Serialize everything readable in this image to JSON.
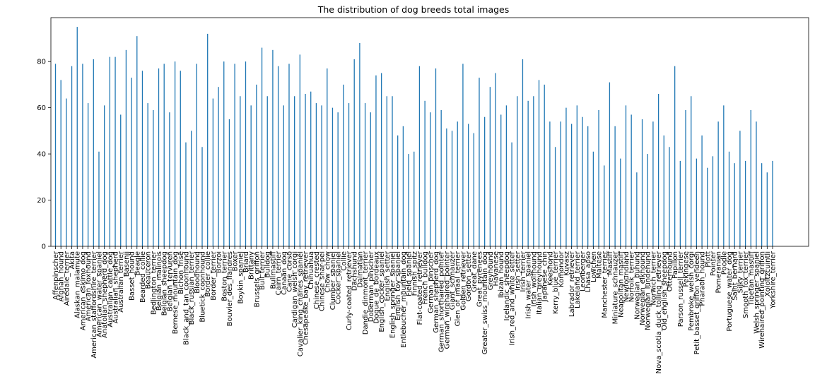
{
  "chart_data": {
    "type": "bar",
    "title": "The distribution of dog breeds total images",
    "xlabel": "",
    "ylabel": "",
    "ylim": [
      0,
      99
    ],
    "yticks": [
      0,
      20,
      40,
      60,
      80
    ],
    "grid": false,
    "color": "#1f77b4",
    "categories": [
      "Affenpinscher",
      "Afghan_hound",
      "Airedale_terrier",
      "Akita",
      "Alaskan_malamute",
      "American_eskimo_dog",
      "American_foxhound",
      "American_staffordshire_terrier",
      "American_water_spaniel",
      "Anatolian_shepherd_dog",
      "Australian_cattle_dog",
      "Australian_shepherd",
      "Australian_terrier",
      "Basenji",
      "Basset_hound",
      "Beagle",
      "Bearded_collie",
      "Beauceron",
      "Bedlington_terrier",
      "Belgian_malinois",
      "Belgian_sheepdog",
      "Belgian_tervuren",
      "Bernese_mountain_dog",
      "Bichon_frise",
      "Black_and_tan_coonhound",
      "Black_russian_terrier",
      "Bloodhound",
      "Bluetick_coonhound",
      "Border_collie",
      "Border_terrier",
      "Borzoi",
      "Boston_terrier",
      "Bouvier_des_flandres",
      "Boxer",
      "Boykin_spaniel",
      "Briard",
      "Brittany",
      "Brussels_griffon",
      "Bull_terrier",
      "Bulldog",
      "Bullmastiff",
      "Cairn_terrier",
      "Canaan_dog",
      "Cane_corso",
      "Cardigan_welsh_corgi",
      "Cavalier_king_charles_spaniel",
      "Chesapeake_bay_retriever",
      "Chihuahua",
      "Chinese_crested",
      "Chinese_shar-pei",
      "Chow_chow",
      "Clumber_spaniel",
      "Cocker_spaniel",
      "Collie",
      "Curly-coated_retriever",
      "Dachshund",
      "Dalmatian",
      "Dandie_dinmont_terrier",
      "Doberman_pinscher",
      "Dogue_de_bordeaux",
      "English_cocker_spaniel",
      "English_setter",
      "English_springer_spaniel",
      "English_toy_spaniel",
      "Entlebucher_mountain_dog",
      "Field_spaniel",
      "Finnish_spitz",
      "Flat-coated_retriever",
      "French_bulldog",
      "German_pinscher",
      "German_shepherd_dog",
      "German_shorthaired_pointer",
      "German_wirehaired_pointer",
      "Giant_schnauzer",
      "Glen_of_imaal_terrier",
      "Golden_retriever",
      "Gordon_setter",
      "Great_dane",
      "Great_pyrenees",
      "Greater_swiss_mountain_dog",
      "Greyhound",
      "Havanese",
      "Ibizan_hound",
      "Icelandic_sheepdog",
      "Irish_red_and_white_setter",
      "Irish_setter",
      "Irish_terrier",
      "Irish_water_spaniel",
      "Irish_wolfhound",
      "Italian_greyhound",
      "Japanese_chin",
      "Keeshond",
      "Kerry_blue_terrier",
      "Komondor",
      "Kuvasz",
      "Labrador_retriever",
      "Lakeland_terrier",
      "Leonberger",
      "Lhasa_apso",
      "Lowchen",
      "Maltese",
      "Manchester_terrier",
      "Mastiff",
      "Miniature_schnauzer",
      "Neapolitan_mastiff",
      "Newfoundland",
      "Norfolk_terrier",
      "Norwegian_buhund",
      "Norwegian_elkhound",
      "Norwegian_lundehund",
      "Norwich_terrier",
      "Nova_scotia_duck_tolling_retriever",
      "Old_english_sheepdog",
      "Otterhound",
      "Papillon",
      "Parson_russell_terrier",
      "Pekingese",
      "Pembroke_welsh_corgi",
      "Petit_basset_griffon_vendeen",
      "Pharaoh_hound",
      "Plott",
      "Pointer",
      "Pomeranian",
      "Poodle",
      "Portuguese_water_dog",
      "Saint_bernard",
      "Silky_terrier",
      "Smooth_fox_terrier",
      "Tibetan_mastiff",
      "Welsh_springer_spaniel",
      "Wirehaired_pointing_griffon",
      "Xoloitzcuintli",
      "Yorkshire_terrier"
    ],
    "values": [
      79,
      72,
      64,
      78,
      95,
      79,
      62,
      81,
      41,
      61,
      82,
      82,
      57,
      85,
      73,
      91,
      76,
      62,
      59,
      77,
      79,
      58,
      80,
      76,
      45,
      50,
      79,
      43,
      92,
      64,
      69,
      80,
      55,
      79,
      65,
      80,
      61,
      70,
      86,
      65,
      85,
      78,
      61,
      79,
      65,
      83,
      66,
      67,
      62,
      61,
      77,
      60,
      58,
      70,
      62,
      81,
      88,
      62,
      58,
      74,
      75,
      65,
      65,
      48,
      52,
      40,
      41,
      78,
      63,
      58,
      77,
      59,
      51,
      50,
      54,
      79,
      53,
      49,
      73,
      56,
      69,
      75,
      57,
      61,
      45,
      65,
      81,
      63,
      65,
      72,
      70,
      54,
      43,
      54,
      60,
      53,
      61,
      56,
      52,
      41,
      59,
      35,
      71,
      52,
      38,
      61,
      57,
      32,
      55,
      40,
      54,
      66,
      48,
      43,
      78,
      37,
      59,
      65,
      38,
      48,
      34,
      39,
      54,
      61,
      41,
      36,
      50,
      37,
      59,
      54,
      36,
      32,
      37
    ]
  }
}
